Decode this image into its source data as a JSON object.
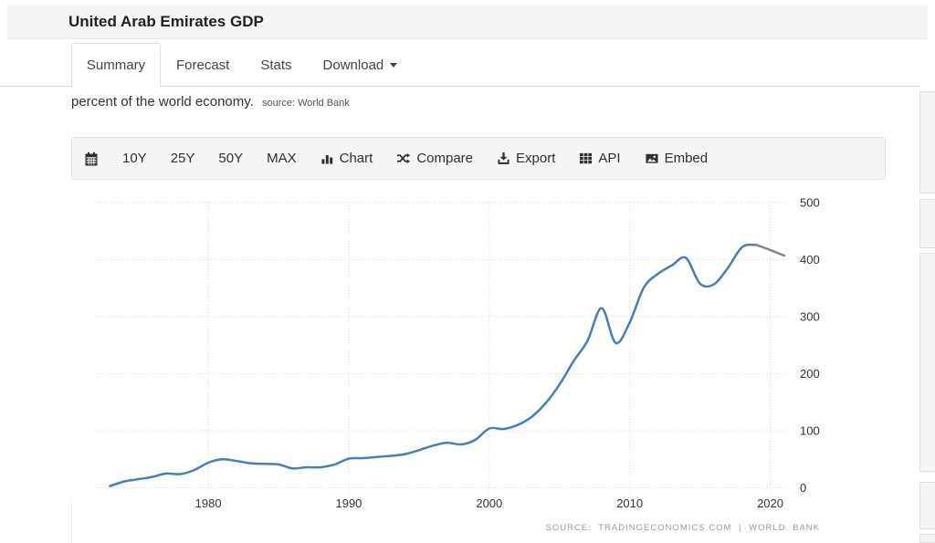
{
  "header": {
    "title": "United Arab Emirates GDP"
  },
  "tabs": [
    {
      "label": "Summary",
      "active": true
    },
    {
      "label": "Forecast",
      "active": false
    },
    {
      "label": "Stats",
      "active": false
    },
    {
      "label": "Download",
      "active": false,
      "caret": true
    }
  ],
  "description": {
    "text": "percent of the world economy.",
    "source_note": "source: World Bank"
  },
  "toolbar": {
    "items": [
      {
        "id": "calendar",
        "label": "",
        "icon": "calendar-icon"
      },
      {
        "id": "10y",
        "label": "10Y",
        "icon": null
      },
      {
        "id": "25y",
        "label": "25Y",
        "icon": null
      },
      {
        "id": "50y",
        "label": "50Y",
        "icon": null
      },
      {
        "id": "max",
        "label": "MAX",
        "icon": null
      },
      {
        "id": "chart",
        "label": "Chart",
        "icon": "bar-chart-icon"
      },
      {
        "id": "compare",
        "label": "Compare",
        "icon": "shuffle-icon"
      },
      {
        "id": "export",
        "label": "Export",
        "icon": "download-icon"
      },
      {
        "id": "api",
        "label": "API",
        "icon": "grid-icon"
      },
      {
        "id": "embed",
        "label": "Embed",
        "icon": "image-icon"
      }
    ]
  },
  "chart_data": {
    "type": "line",
    "title": "",
    "xlabel": "",
    "ylabel": "",
    "xlim": [
      1972,
      2021.2
    ],
    "ylim": [
      0,
      500
    ],
    "x_ticks": [
      1980,
      1990,
      2000,
      2010,
      2020
    ],
    "y_ticks": [
      0,
      100,
      200,
      300,
      400,
      500
    ],
    "grid": "dotted",
    "legend": "none",
    "credits": "SOURCE: TRADINGECONOMICS.COM | WORLD BANK",
    "series": [
      {
        "name": "gdp",
        "color": "#4a7eb9",
        "x_start": 1973,
        "x_step": 1,
        "values": [
          3,
          11,
          15,
          19,
          25,
          24,
          31,
          44,
          50,
          47,
          43,
          42,
          41,
          34,
          36,
          36,
          41,
          51,
          52,
          54,
          56,
          59,
          66,
          74,
          79,
          76,
          84,
          104,
          103,
          110,
          124,
          148,
          181,
          222,
          258,
          315,
          254,
          290,
          351,
          375,
          390,
          403,
          358,
          357,
          386,
          422,
          426
        ]
      },
      {
        "name": "recent",
        "color": "#848484",
        "x": [
          2019,
          2020,
          2021
        ],
        "values": [
          426,
          417,
          407
        ]
      }
    ]
  }
}
